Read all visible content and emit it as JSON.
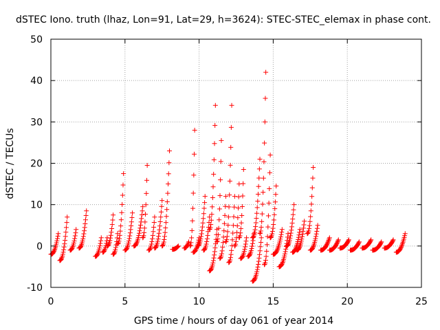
{
  "chart_data": {
    "type": "scatter",
    "title": "dSTEC Iono. truth (lhaz, Lon=91, Lat=29, h=3624): STEC-STEC_elemax in phase cont.",
    "xlabel": "GPS time / hours of day 061 of year 2014",
    "ylabel": "dSTEC  / TECUs",
    "xlim": [
      0,
      25
    ],
    "ylim": [
      -10,
      50
    ],
    "xticks": [
      0,
      5,
      10,
      15,
      20,
      25
    ],
    "yticks": [
      -10,
      0,
      10,
      20,
      30,
      40,
      50
    ],
    "xtick_labels": [
      "0",
      "5",
      "10",
      "15",
      "20",
      "25"
    ],
    "ytick_labels": [
      "-10",
      "0",
      "10",
      "20",
      "30",
      "40",
      "50"
    ],
    "grid": true,
    "legend": "none",
    "marker": "+",
    "color": "#ff0000",
    "series": [
      {
        "name": "dSTEC",
        "arcs": [
          {
            "t0": 0.0,
            "t1": 0.5,
            "peak": 3,
            "low": -2
          },
          {
            "t0": 0.6,
            "t1": 1.1,
            "peak": 7,
            "low": -3.5
          },
          {
            "t0": 1.3,
            "t1": 1.7,
            "peak": 4,
            "low": -1
          },
          {
            "t0": 1.9,
            "t1": 2.4,
            "peak": 8.5,
            "low": -0.5
          },
          {
            "t0": 3.0,
            "t1": 3.4,
            "peak": 2,
            "low": -2.5
          },
          {
            "t0": 3.5,
            "t1": 3.8,
            "peak": 2,
            "low": -1.5
          },
          {
            "t0": 3.8,
            "t1": 4.2,
            "peak": 7.5,
            "low": 0
          },
          {
            "t0": 4.2,
            "t1": 4.5,
            "peak": 3,
            "low": -2
          },
          {
            "t0": 4.5,
            "t1": 4.9,
            "peak": 17.5,
            "low": 0.5
          },
          {
            "t0": 5.0,
            "t1": 5.5,
            "peak": 8,
            "low": -1
          },
          {
            "t0": 5.6,
            "t1": 6.2,
            "peak": 9.5,
            "low": 0
          },
          {
            "t0": 6.2,
            "t1": 6.5,
            "peak": 19.5,
            "low": 2
          },
          {
            "t0": 6.6,
            "t1": 7.0,
            "peak": 7,
            "low": -1
          },
          {
            "t0": 7.0,
            "t1": 7.5,
            "peak": 11,
            "low": -0.5
          },
          {
            "t0": 7.5,
            "t1": 8.0,
            "peak": 23,
            "low": 0
          },
          {
            "t0": 8.2,
            "t1": 8.6,
            "peak": 0,
            "low": -0.8
          },
          {
            "t0": 9.0,
            "t1": 9.3,
            "peak": 1,
            "low": -0.5
          },
          {
            "t0": 9.4,
            "t1": 9.7,
            "peak": 28,
            "low": 0
          },
          {
            "t0": 9.6,
            "t1": 10.0,
            "peak": 2,
            "low": -1.5
          },
          {
            "t0": 9.9,
            "t1": 10.4,
            "peak": 12,
            "low": 0
          },
          {
            "t0": 10.3,
            "t1": 10.7,
            "peak": 7,
            "low": -1
          },
          {
            "t0": 10.7,
            "t1": 11.1,
            "peak": 34,
            "low": 4
          },
          {
            "t0": 10.7,
            "t1": 11.2,
            "peak": 4,
            "low": -6
          },
          {
            "t0": 11.2,
            "t1": 11.5,
            "peak": 25.5,
            "low": 1
          },
          {
            "t0": 11.4,
            "t1": 11.8,
            "peak": 12,
            "low": -3
          },
          {
            "t0": 11.8,
            "t1": 12.2,
            "peak": 34,
            "low": 1
          },
          {
            "t0": 12.0,
            "t1": 12.4,
            "peak": 12,
            "low": -4
          },
          {
            "t0": 12.4,
            "t1": 12.7,
            "peak": 15,
            "low": 0
          },
          {
            "t0": 12.7,
            "t1": 13.0,
            "peak": 18.5,
            "low": 2
          },
          {
            "t0": 12.8,
            "t1": 13.2,
            "peak": 2,
            "low": -3
          },
          {
            "t0": 13.3,
            "t1": 13.7,
            "peak": 3,
            "low": -2.5
          },
          {
            "t0": 13.6,
            "t1": 14.1,
            "peak": 21,
            "low": 2
          },
          {
            "t0": 13.6,
            "t1": 14.2,
            "peak": 2,
            "low": -8.5
          },
          {
            "t0": 14.1,
            "t1": 14.5,
            "peak": 42,
            "low": 3
          },
          {
            "t0": 14.4,
            "t1": 14.8,
            "peak": 22,
            "low": -4.5
          },
          {
            "t0": 14.8,
            "t1": 15.2,
            "peak": 14.5,
            "low": 2
          },
          {
            "t0": 15.0,
            "t1": 15.6,
            "peak": 4,
            "low": -2
          },
          {
            "t0": 15.4,
            "t1": 16.0,
            "peak": 3,
            "low": -5
          },
          {
            "t0": 15.9,
            "t1": 16.4,
            "peak": 10,
            "low": 0
          },
          {
            "t0": 16.3,
            "t1": 16.8,
            "peak": 4,
            "low": -1.5
          },
          {
            "t0": 16.6,
            "t1": 17.1,
            "peak": 6,
            "low": -1
          },
          {
            "t0": 17.3,
            "t1": 17.7,
            "peak": 19,
            "low": 3
          },
          {
            "t0": 17.5,
            "t1": 18.0,
            "peak": 5,
            "low": -1
          },
          {
            "t0": 18.2,
            "t1": 18.8,
            "peak": 2,
            "low": -1
          },
          {
            "t0": 18.8,
            "t1": 19.4,
            "peak": 1.5,
            "low": -1
          },
          {
            "t0": 19.5,
            "t1": 20.1,
            "peak": 1.5,
            "low": -0.5
          },
          {
            "t0": 20.2,
            "t1": 20.8,
            "peak": 1,
            "low": -1
          },
          {
            "t0": 21.0,
            "t1": 21.6,
            "peak": 1.5,
            "low": -0.5
          },
          {
            "t0": 21.7,
            "t1": 22.3,
            "peak": 1,
            "low": -1
          },
          {
            "t0": 22.5,
            "t1": 23.1,
            "peak": 1.5,
            "low": -0.5
          },
          {
            "t0": 23.3,
            "t1": 23.9,
            "peak": 3,
            "low": -1.5
          }
        ]
      }
    ]
  }
}
